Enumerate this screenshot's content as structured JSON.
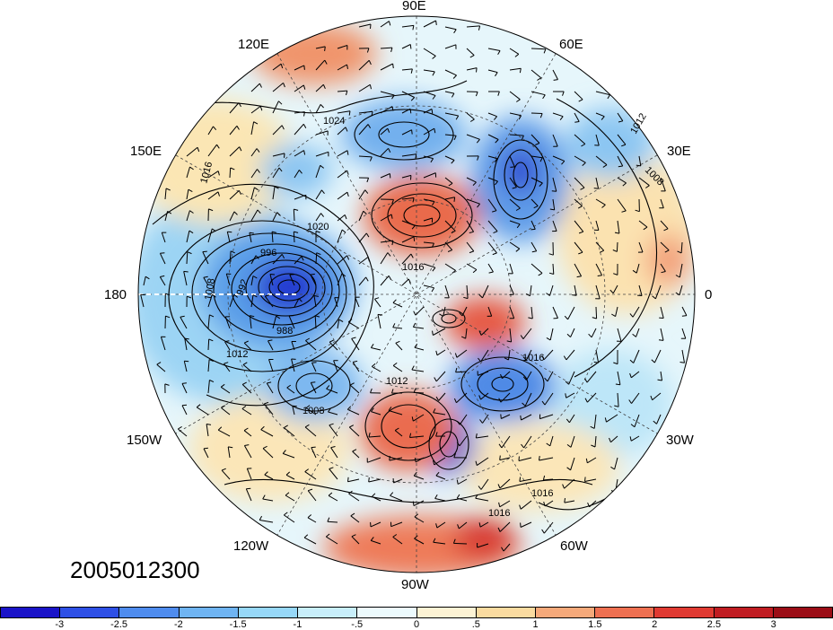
{
  "timestamp": "2005012300",
  "longitude_labels": {
    "lon_90E": "90E",
    "lon_60E": "60E",
    "lon_120E": "120E",
    "lon_150E": "150E",
    "lon_30E": "30E",
    "lon_180": "180",
    "lon_0": "0",
    "lon_150W": "150W",
    "lon_30W": "30W",
    "lon_120W": "120W",
    "lon_60W": "60W",
    "lon_90W": "90W"
  },
  "contour_labels": {
    "c_996": "996",
    "c_988": "988",
    "c_992": "992",
    "c_1008a": "1008",
    "c_1012a": "1012",
    "c_1008b": "1008",
    "c_1012b": "1012",
    "c_1016a": "1016",
    "c_1016b": "1016",
    "c_1016c": "1016",
    "c_1016d": "1016",
    "c_1020": "1020",
    "c_1024": "1024",
    "c_1012c": "1012",
    "c_1008c": "1008",
    "c_1016e": "1016"
  },
  "colorbar": {
    "colors": [
      "#1a14c8",
      "#2e50e6",
      "#4f8cee",
      "#6fb4f2",
      "#97d8f8",
      "#c8eefa",
      "#ecfafd",
      "#fdf3d4",
      "#fadba0",
      "#f5a97a",
      "#ee7051",
      "#e03a32",
      "#c01c22",
      "#9b0d16"
    ],
    "tick_labels": [
      "-3",
      "-2.5",
      "-2",
      "-1.5",
      "-1",
      "-.5",
      "0",
      ".5",
      "1",
      "1.5",
      "2",
      "2.5",
      "3"
    ]
  }
}
